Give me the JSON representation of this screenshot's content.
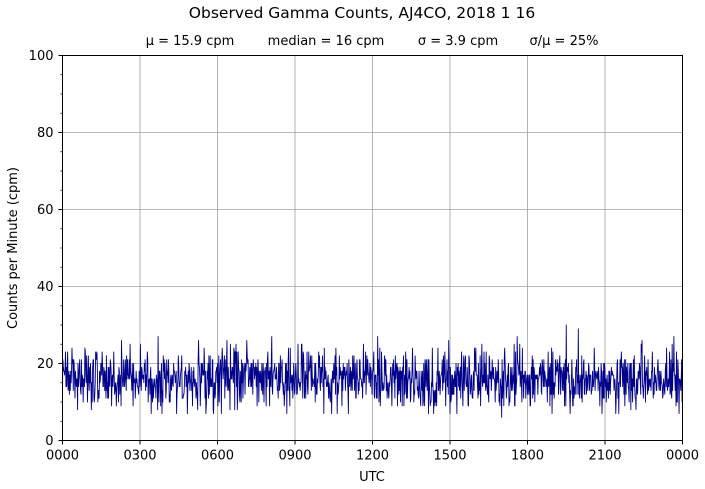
{
  "chart_data": {
    "type": "line",
    "title": "Observed Gamma Counts, AJ4CO, 2018 1 16",
    "stats": {
      "mean": "μ = 15.9 cpm",
      "median": "median = 16 cpm",
      "sigma": "σ = 3.9 cpm",
      "ratio": "σ/μ = 25%"
    },
    "xlabel": "UTC",
    "ylabel": "Counts per Minute (cpm)",
    "xticks": [
      "0000",
      "0300",
      "0600",
      "0900",
      "1200",
      "1500",
      "1800",
      "2100",
      "0000"
    ],
    "yticks": [
      0,
      20,
      40,
      60,
      80,
      100
    ],
    "xlim_hours": [
      0,
      24
    ],
    "ylim": [
      0,
      100
    ],
    "grid": true,
    "series": [
      {
        "color": "#00008b",
        "sampling": "1 sample per minute, 1440 samples (00:00–23:59 UTC)",
        "mean": 15.9,
        "sigma": 3.9,
        "min": 6,
        "max": 30,
        "notable_points": [
          {
            "time": "0806",
            "value": 27
          },
          {
            "time": "1700",
            "value": 6
          },
          {
            "time": "1930",
            "value": 30
          },
          {
            "time": "1958",
            "value": 29
          },
          {
            "time": "2340",
            "value": 27
          },
          {
            "time": "2359",
            "value": 10
          }
        ]
      }
    ]
  }
}
